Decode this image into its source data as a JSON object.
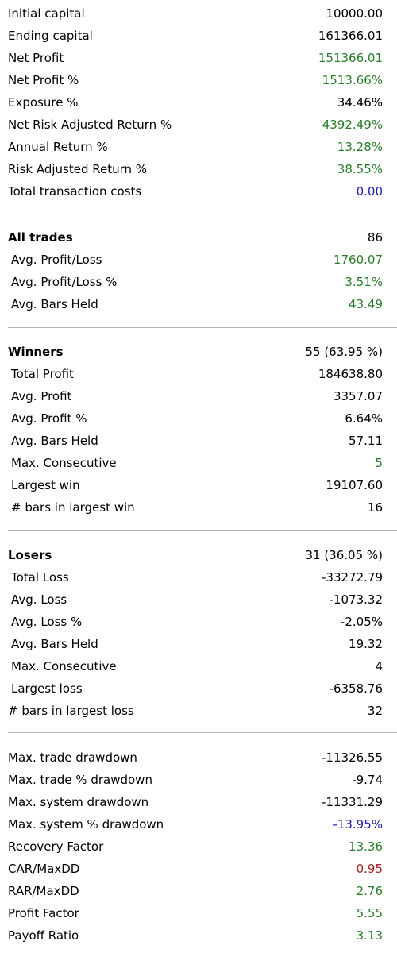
{
  "colors": {
    "black": "#000000",
    "green": "#2a7d2a",
    "blue": "#1f1fa6",
    "red": "#a32020"
  },
  "summary": [
    {
      "label": "Initial capital",
      "value": "10000.00",
      "color": "black"
    },
    {
      "label": "Ending capital",
      "value": "161366.01",
      "color": "black"
    },
    {
      "label": "Net Profit",
      "value": "151366.01",
      "color": "green"
    },
    {
      "label": "Net Profit %",
      "value": "1513.66%",
      "color": "green"
    },
    {
      "label": "Exposure %",
      "value": "34.46%",
      "color": "black"
    },
    {
      "label": "Net Risk Adjusted Return %",
      "value": "4392.49%",
      "color": "green"
    },
    {
      "label": "Annual Return %",
      "value": "13.28%",
      "color": "green"
    },
    {
      "label": "Risk Adjusted Return %",
      "value": "38.55%",
      "color": "green"
    },
    {
      "label": "Total transaction costs",
      "value": "0.00",
      "color": "blue"
    }
  ],
  "all_trades": {
    "header": {
      "label": "All trades",
      "value": "86",
      "color": "black"
    },
    "rows": [
      {
        "label": "Avg. Profit/Loss",
        "value": "1760.07",
        "color": "green"
      },
      {
        "label": "Avg. Profit/Loss %",
        "value": "3.51%",
        "color": "green"
      },
      {
        "label": "Avg. Bars Held",
        "value": "43.49",
        "color": "green"
      }
    ]
  },
  "winners": {
    "header": {
      "label": "Winners",
      "value": "55 (63.95 %)",
      "color": "black"
    },
    "rows": [
      {
        "label": "Total Profit",
        "value": "184638.80",
        "color": "black"
      },
      {
        "label": "Avg. Profit",
        "value": "3357.07",
        "color": "black"
      },
      {
        "label": "Avg. Profit %",
        "value": "6.64%",
        "color": "black"
      },
      {
        "label": "Avg. Bars Held",
        "value": "57.11",
        "color": "black"
      },
      {
        "label": "Max. Consecutive",
        "value": "5",
        "color": "green"
      },
      {
        "label": "Largest win",
        "value": "19107.60",
        "color": "black"
      },
      {
        "label": "# bars in largest win",
        "value": "16",
        "color": "black"
      }
    ]
  },
  "losers": {
    "header": {
      "label": "Losers",
      "value": "31 (36.05 %)",
      "color": "black"
    },
    "rows": [
      {
        "label": "Total Loss",
        "value": "-33272.79",
        "color": "black"
      },
      {
        "label": "Avg. Loss",
        "value": "-1073.32",
        "color": "black"
      },
      {
        "label": "Avg. Loss %",
        "value": "-2.05%",
        "color": "black"
      },
      {
        "label": "Avg. Bars Held",
        "value": "19.32",
        "color": "black"
      },
      {
        "label": "Max. Consecutive",
        "value": "4",
        "color": "black"
      },
      {
        "label": "Largest loss",
        "value": "-6358.76",
        "color": "black"
      },
      {
        "label": "# bars in largest loss",
        "value": "32",
        "color": "black"
      }
    ]
  },
  "drawdown": [
    {
      "label": "Max. trade drawdown",
      "value": "-11326.55",
      "color": "black"
    },
    {
      "label": "Max. trade % drawdown",
      "value": "-9.74",
      "color": "black"
    },
    {
      "label": "Max. system drawdown",
      "value": "-11331.29",
      "color": "black"
    },
    {
      "label": "Max. system % drawdown",
      "value": "-13.95%",
      "color": "blue"
    },
    {
      "label": "Recovery Factor",
      "value": "13.36",
      "color": "green"
    },
    {
      "label": "CAR/MaxDD",
      "value": "0.95",
      "color": "red"
    },
    {
      "label": "RAR/MaxDD",
      "value": "2.76",
      "color": "green"
    },
    {
      "label": "Profit Factor",
      "value": "5.55",
      "color": "green"
    },
    {
      "label": "Payoff Ratio",
      "value": "3.13",
      "color": "green"
    }
  ]
}
